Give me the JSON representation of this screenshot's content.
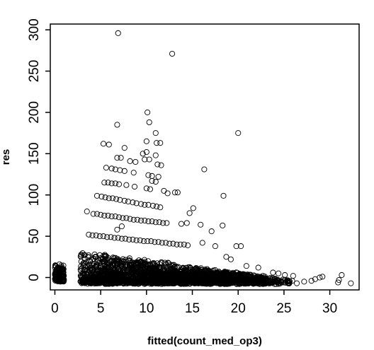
{
  "chart_data": {
    "type": "scatter",
    "xlabel": "fitted(count_med_op3)",
    "ylabel": "res",
    "xlim": [
      -0.5,
      33.2
    ],
    "ylim": [
      -15,
      307
    ],
    "x_ticks": [
      0,
      5,
      10,
      15,
      20,
      25,
      30
    ],
    "y_ticks": [
      0,
      50,
      100,
      150,
      200,
      250,
      300
    ],
    "x_tick_labels": [
      "0",
      "5",
      "10",
      "15",
      "20",
      "25",
      "30"
    ],
    "y_tick_labels": [
      "0",
      "50",
      "100",
      "150",
      "200",
      "250",
      "300"
    ],
    "grid": false,
    "legend": "none",
    "marker": "open-circle",
    "marker_color": "#000000",
    "points": [
      [
        6.9,
        296
      ],
      [
        12.8,
        271
      ],
      [
        10.1,
        200
      ],
      [
        20.0,
        175
      ],
      [
        6.8,
        185
      ],
      [
        10.3,
        188
      ],
      [
        11.0,
        175
      ],
      [
        5.3,
        162
      ],
      [
        5.9,
        161
      ],
      [
        7.6,
        157
      ],
      [
        10.0,
        165
      ],
      [
        11.1,
        163
      ],
      [
        11.5,
        163
      ],
      [
        10.0,
        152
      ],
      [
        9.6,
        150
      ],
      [
        11.0,
        148
      ],
      [
        16.3,
        131
      ],
      [
        6.8,
        145
      ],
      [
        7.2,
        145
      ],
      [
        8.2,
        141
      ],
      [
        8.8,
        140
      ],
      [
        9.8,
        143
      ],
      [
        10.3,
        143
      ],
      [
        11.2,
        137
      ],
      [
        11.6,
        136
      ],
      [
        5.6,
        133
      ],
      [
        6.2,
        132
      ],
      [
        6.6,
        131
      ],
      [
        7.1,
        130
      ],
      [
        7.6,
        129
      ],
      [
        8.6,
        127
      ],
      [
        10.2,
        124
      ],
      [
        10.6,
        123
      ],
      [
        11.3,
        122
      ],
      [
        10.6,
        117
      ],
      [
        11.0,
        116
      ],
      [
        5.4,
        115
      ],
      [
        5.8,
        115
      ],
      [
        6.2,
        114
      ],
      [
        6.6,
        114
      ],
      [
        7.0,
        113
      ],
      [
        7.8,
        112
      ],
      [
        8.7,
        110
      ],
      [
        10.0,
        108
      ],
      [
        10.4,
        107
      ],
      [
        11.9,
        105
      ],
      [
        13.1,
        103
      ],
      [
        13.4,
        103
      ],
      [
        12.3,
        102
      ],
      [
        18.4,
        99
      ],
      [
        4.6,
        99
      ],
      [
        5.1,
        98
      ],
      [
        5.5,
        97
      ],
      [
        5.9,
        96
      ],
      [
        6.3,
        96
      ],
      [
        6.7,
        95
      ],
      [
        7.1,
        94
      ],
      [
        7.6,
        93
      ],
      [
        8.0,
        92
      ],
      [
        8.5,
        91
      ],
      [
        8.9,
        90
      ],
      [
        9.4,
        89
      ],
      [
        9.8,
        88
      ],
      [
        10.2,
        88
      ],
      [
        10.7,
        87
      ],
      [
        11.1,
        86
      ],
      [
        11.5,
        85
      ],
      [
        15.1,
        84
      ],
      [
        14.7,
        78
      ],
      [
        3.5,
        80
      ],
      [
        4.2,
        77
      ],
      [
        4.6,
        77
      ],
      [
        5.0,
        76
      ],
      [
        5.4,
        75
      ],
      [
        5.8,
        75
      ],
      [
        6.2,
        74
      ],
      [
        6.6,
        74
      ],
      [
        7.0,
        73
      ],
      [
        7.4,
        72
      ],
      [
        7.8,
        72
      ],
      [
        8.2,
        71
      ],
      [
        8.6,
        70
      ],
      [
        9.0,
        70
      ],
      [
        9.4,
        69
      ],
      [
        9.8,
        69
      ],
      [
        10.2,
        68
      ],
      [
        10.6,
        68
      ],
      [
        11.0,
        67
      ],
      [
        11.4,
        67
      ],
      [
        11.8,
        66
      ],
      [
        12.2,
        66
      ],
      [
        13.8,
        65
      ],
      [
        14.4,
        66
      ],
      [
        15.9,
        64
      ],
      [
        18.3,
        63
      ],
      [
        17.1,
        56
      ],
      [
        7.3,
        62
      ],
      [
        6.8,
        58
      ],
      [
        3.7,
        52
      ],
      [
        4.1,
        51
      ],
      [
        4.5,
        51
      ],
      [
        4.9,
        50
      ],
      [
        5.3,
        50
      ],
      [
        5.7,
        49
      ],
      [
        6.1,
        49
      ],
      [
        6.5,
        48
      ],
      [
        6.9,
        48
      ],
      [
        7.3,
        47
      ],
      [
        7.7,
        47
      ],
      [
        8.1,
        46
      ],
      [
        8.5,
        46
      ],
      [
        8.9,
        45
      ],
      [
        9.3,
        45
      ],
      [
        9.7,
        44
      ],
      [
        10.1,
        44
      ],
      [
        10.5,
        44
      ],
      [
        10.9,
        43
      ],
      [
        11.3,
        43
      ],
      [
        11.7,
        42
      ],
      [
        12.1,
        42
      ],
      [
        12.5,
        41
      ],
      [
        12.9,
        41
      ],
      [
        13.3,
        40
      ],
      [
        13.7,
        40
      ],
      [
        14.1,
        40
      ],
      [
        14.5,
        39
      ],
      [
        16.1,
        42
      ],
      [
        17.5,
        38
      ],
      [
        19.8,
        38
      ],
      [
        20.3,
        38
      ],
      [
        18.7,
        25
      ],
      [
        19.2,
        22
      ],
      [
        20.9,
        14
      ],
      [
        22.2,
        12
      ],
      [
        23.8,
        6
      ],
      [
        24.4,
        5
      ],
      [
        25.1,
        3
      ],
      [
        26.0,
        2
      ],
      [
        28.4,
        -2
      ],
      [
        28.9,
        0
      ],
      [
        29.2,
        1
      ],
      [
        31.0,
        -3
      ],
      [
        31.3,
        3
      ],
      [
        32.3,
        -7
      ],
      [
        30.9,
        -6
      ],
      [
        28.0,
        -4
      ],
      [
        27.2,
        -5
      ],
      [
        25.9,
        -4
      ],
      [
        24.9,
        -6
      ],
      [
        26.4,
        -7
      ],
      [
        23.1,
        -5
      ],
      [
        21.3,
        -3
      ],
      [
        22.7,
        2
      ],
      [
        0.1,
        14
      ],
      [
        0.3,
        12
      ],
      [
        0.5,
        16
      ],
      [
        0.7,
        10
      ],
      [
        0.9,
        8
      ],
      [
        0.2,
        -4
      ],
      [
        0.6,
        -5
      ],
      [
        0.8,
        -3
      ],
      [
        0.4,
        2
      ],
      [
        0.1,
        5
      ],
      [
        0.9,
        0
      ],
      [
        0.3,
        -1
      ],
      [
        0.6,
        7
      ],
      [
        0.2,
        9
      ]
    ]
  }
}
